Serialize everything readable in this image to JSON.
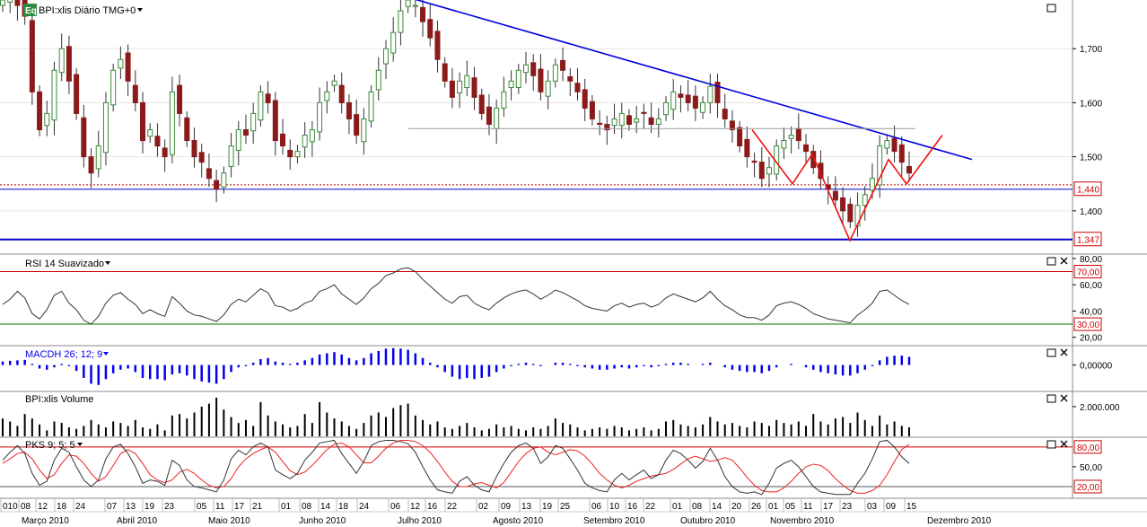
{
  "panels": {
    "price": {
      "label": "BPI:xlis Diário TMG+0",
      "badge": "Eq"
    },
    "rsi": {
      "label": "RSI 14 Suavizado"
    },
    "macd": {
      "label": "MACDH 26; 12; 9"
    },
    "volume": {
      "label": "BPI:xlis Volume"
    },
    "pks": {
      "label": "PKS 9; 5; 5"
    }
  },
  "colors": {
    "up": "#3a8a3a",
    "down": "#8b1a1a",
    "trend": "#0000dd",
    "pattern": "#ee1111",
    "neckline": "#999999",
    "rsi_line": "#333333",
    "macd": "#0000ee",
    "vol": "#000000",
    "pks_fast": "#333333",
    "pks_slow": "#ee2222",
    "grid": "#e6e6e6",
    "ref_red": "#cc0000",
    "ref_green": "#007700"
  },
  "chart_data": {
    "type": "candlestick",
    "title": "BPI:xlis Diário TMG+0",
    "price_axis": {
      "ticks": [
        "1,700",
        "1,600",
        "1,500",
        "1,400"
      ],
      "ylim": [
        1.32,
        1.79
      ]
    },
    "price_markers": [
      "1,440",
      "1,347"
    ],
    "date_axis": {
      "days": [
        "010",
        "08",
        "12",
        "18",
        "24",
        "07",
        "13",
        "19",
        "23",
        "05",
        "11",
        "17",
        "21",
        "01",
        "08",
        "14",
        "18",
        "24",
        "06",
        "12",
        "16",
        "22",
        "02",
        "09",
        "13",
        "19",
        "25",
        "06",
        "10",
        "16",
        "22",
        "01",
        "08",
        "14",
        "20",
        "26",
        "01",
        "05",
        "11",
        "17",
        "23",
        "03",
        "09",
        "15"
      ],
      "months": [
        "Março 2010",
        "Abril 2010",
        "Maio 2010",
        "Junho 2010",
        "Julho 2010",
        "Agosto 2010",
        "Setembro 2010",
        "Outubro 2010",
        "Novembro 2010",
        "Dezembro 2010"
      ]
    },
    "close": [
      1.79,
      1.8,
      1.78,
      1.76,
      1.62,
      1.55,
      1.58,
      1.66,
      1.7,
      1.64,
      1.58,
      1.5,
      1.47,
      1.52,
      1.6,
      1.66,
      1.68,
      1.64,
      1.6,
      1.53,
      1.55,
      1.52,
      1.5,
      1.62,
      1.58,
      1.53,
      1.5,
      1.49,
      1.46,
      1.44,
      1.47,
      1.52,
      1.55,
      1.54,
      1.58,
      1.62,
      1.6,
      1.53,
      1.52,
      1.5,
      1.51,
      1.54,
      1.55,
      1.6,
      1.62,
      1.64,
      1.6,
      1.57,
      1.54,
      1.57,
      1.62,
      1.66,
      1.7,
      1.73,
      1.77,
      1.79,
      1.78,
      1.75,
      1.72,
      1.68,
      1.64,
      1.61,
      1.64,
      1.65,
      1.61,
      1.58,
      1.56,
      1.59,
      1.62,
      1.64,
      1.66,
      1.67,
      1.65,
      1.62,
      1.64,
      1.67,
      1.66,
      1.64,
      1.62,
      1.59,
      1.57,
      1.56,
      1.55,
      1.57,
      1.58,
      1.56,
      1.57,
      1.58,
      1.56,
      1.57,
      1.6,
      1.62,
      1.61,
      1.6,
      1.59,
      1.6,
      1.63,
      1.6,
      1.57,
      1.55,
      1.52,
      1.5,
      1.49,
      1.46,
      1.48,
      1.52,
      1.53,
      1.54,
      1.53,
      1.51,
      1.48,
      1.46,
      1.44,
      1.42,
      1.4,
      1.38,
      1.41,
      1.43,
      1.46,
      1.52,
      1.53,
      1.51,
      1.49,
      1.47
    ],
    "rsi": {
      "ticks": [
        "80,00",
        "60,00",
        "40,00",
        "20,00"
      ],
      "levels": [
        "70,00",
        "30,00"
      ],
      "ylim": [
        15,
        82
      ],
      "values": [
        45,
        49,
        55,
        50,
        38,
        34,
        41,
        52,
        55,
        46,
        41,
        33,
        30,
        36,
        46,
        52,
        54,
        49,
        45,
        38,
        41,
        38,
        36,
        51,
        46,
        40,
        37,
        36,
        34,
        32,
        37,
        45,
        49,
        47,
        52,
        57,
        54,
        44,
        43,
        40,
        42,
        46,
        48,
        55,
        57,
        60,
        53,
        49,
        45,
        50,
        57,
        61,
        67,
        69,
        72,
        73,
        70,
        64,
        59,
        54,
        49,
        46,
        51,
        52,
        46,
        43,
        41,
        46,
        50,
        53,
        55,
        56,
        53,
        49,
        52,
        56,
        54,
        51,
        48,
        44,
        42,
        41,
        40,
        44,
        46,
        43,
        45,
        46,
        43,
        45,
        50,
        53,
        51,
        49,
        47,
        50,
        55,
        49,
        44,
        41,
        37,
        35,
        35,
        33,
        37,
        44,
        46,
        47,
        45,
        42,
        38,
        36,
        34,
        33,
        32,
        31,
        37,
        41,
        46,
        55,
        56,
        52,
        48,
        45
      ]
    },
    "macd": {
      "tick": "0,00000",
      "ylim": [
        -1.05,
        0.75
      ],
      "values": [
        0.15,
        0.18,
        0.2,
        0.22,
        0.05,
        -0.15,
        -0.2,
        -0.1,
        0.05,
        -0.05,
        -0.25,
        -0.55,
        -0.8,
        -0.85,
        -0.6,
        -0.35,
        -0.2,
        -0.15,
        -0.3,
        -0.55,
        -0.6,
        -0.6,
        -0.65,
        -0.4,
        -0.35,
        -0.45,
        -0.6,
        -0.7,
        -0.75,
        -0.8,
        -0.6,
        -0.3,
        -0.1,
        -0.05,
        0.1,
        0.25,
        0.3,
        0.15,
        0.1,
        0.05,
        0.1,
        0.2,
        0.3,
        0.45,
        0.5,
        0.55,
        0.45,
        0.3,
        0.2,
        0.3,
        0.5,
        0.6,
        0.7,
        0.72,
        0.7,
        0.65,
        0.5,
        0.3,
        0.1,
        -0.1,
        -0.3,
        -0.5,
        -0.6,
        -0.55,
        -0.6,
        -0.55,
        -0.5,
        -0.3,
        -0.15,
        -0.05,
        0.05,
        0.1,
        0.05,
        -0.05,
        0.0,
        0.1,
        0.1,
        0.05,
        -0.05,
        -0.1,
        -0.15,
        -0.2,
        -0.2,
        -0.15,
        -0.1,
        -0.15,
        -0.1,
        -0.05,
        -0.1,
        -0.05,
        0.05,
        0.1,
        0.1,
        0.05,
        0.0,
        0.05,
        0.1,
        0.0,
        -0.1,
        -0.2,
        -0.25,
        -0.3,
        -0.3,
        -0.35,
        -0.25,
        -0.1,
        0.0,
        0.05,
        0.0,
        -0.1,
        -0.2,
        -0.3,
        -0.35,
        -0.4,
        -0.45,
        -0.45,
        -0.35,
        -0.2,
        -0.05,
        0.2,
        0.35,
        0.4,
        0.4,
        0.35
      ]
    },
    "volume": {
      "tick": "2.000.000",
      "ylim": [
        0,
        2.9
      ],
      "values": [
        1.2,
        1.0,
        0.7,
        1.5,
        1.2,
        0.8,
        0.4,
        1.0,
        0.9,
        0.6,
        0.5,
        0.7,
        1.1,
        0.8,
        0.6,
        1.0,
        0.9,
        0.7,
        1.1,
        0.6,
        0.5,
        0.8,
        0.4,
        1.4,
        1.5,
        1.2,
        1.6,
        2.0,
        2.2,
        2.6,
        1.8,
        1.3,
        0.9,
        1.1,
        0.7,
        2.3,
        1.4,
        1.0,
        0.8,
        0.6,
        0.7,
        1.5,
        0.9,
        2.3,
        1.6,
        1.2,
        1.0,
        0.7,
        0.5,
        0.9,
        1.4,
        1.6,
        1.3,
        1.9,
        2.1,
        2.2,
        1.4,
        1.1,
        0.8,
        1.0,
        0.6,
        0.5,
        0.7,
        0.9,
        0.6,
        0.4,
        0.5,
        0.8,
        0.6,
        0.7,
        0.5,
        0.4,
        0.6,
        0.5,
        0.7,
        1.2,
        0.9,
        0.8,
        0.6,
        0.4,
        0.5,
        0.6,
        0.5,
        0.7,
        0.6,
        0.4,
        0.5,
        0.6,
        0.4,
        0.5,
        1.0,
        1.1,
        0.8,
        0.7,
        0.6,
        0.8,
        1.3,
        1.0,
        0.8,
        0.9,
        0.7,
        0.6,
        1.0,
        0.9,
        0.7,
        1.1,
        0.9,
        0.8,
        1.0,
        0.7,
        1.5,
        1.0,
        0.8,
        1.2,
        1.3,
        0.9,
        1.6,
        1.1,
        0.7,
        1.4,
        0.8,
        1.0,
        0.7,
        0.6
      ]
    },
    "pks": {
      "ticks": [
        "80,00",
        "50,00",
        "20,00"
      ],
      "ylim": [
        5,
        92
      ],
      "fast": [
        60,
        72,
        82,
        70,
        40,
        22,
        28,
        60,
        78,
        72,
        50,
        30,
        20,
        30,
        62,
        80,
        84,
        70,
        50,
        25,
        30,
        28,
        22,
        60,
        52,
        30,
        20,
        18,
        15,
        12,
        30,
        62,
        75,
        68,
        80,
        86,
        80,
        45,
        38,
        32,
        40,
        60,
        72,
        86,
        88,
        90,
        70,
        55,
        40,
        58,
        82,
        88,
        90,
        90,
        88,
        85,
        72,
        50,
        30,
        15,
        12,
        10,
        28,
        35,
        22,
        15,
        12,
        35,
        55,
        72,
        82,
        86,
        78,
        55,
        65,
        82,
        78,
        62,
        45,
        25,
        18,
        14,
        12,
        30,
        40,
        30,
        38,
        45,
        32,
        38,
        60,
        75,
        70,
        60,
        48,
        58,
        78,
        60,
        35,
        20,
        12,
        10,
        12,
        8,
        25,
        48,
        55,
        60,
        50,
        35,
        20,
        12,
        10,
        8,
        8,
        8,
        25,
        40,
        62,
        88,
        90,
        80,
        65,
        55
      ],
      "slow": [
        55,
        62,
        70,
        72,
        62,
        45,
        32,
        38,
        55,
        68,
        66,
        55,
        40,
        28,
        35,
        52,
        70,
        76,
        70,
        55,
        38,
        30,
        26,
        30,
        42,
        46,
        40,
        30,
        22,
        18,
        20,
        32,
        50,
        62,
        70,
        76,
        80,
        72,
        58,
        44,
        38,
        42,
        52,
        64,
        76,
        84,
        86,
        80,
        68,
        56,
        56,
        66,
        78,
        86,
        90,
        90,
        88,
        82,
        72,
        58,
        42,
        28,
        20,
        20,
        24,
        26,
        22,
        18,
        26,
        42,
        58,
        70,
        78,
        80,
        72,
        68,
        72,
        76,
        74,
        66,
        54,
        40,
        30,
        22,
        18,
        22,
        28,
        32,
        36,
        38,
        40,
        46,
        54,
        62,
        66,
        62,
        58,
        60,
        64,
        60,
        48,
        34,
        22,
        14,
        12,
        12,
        18,
        28,
        40,
        50,
        54,
        52,
        44,
        32,
        22,
        14,
        10,
        10,
        14,
        22,
        38,
        58,
        76,
        84
      ]
    }
  }
}
